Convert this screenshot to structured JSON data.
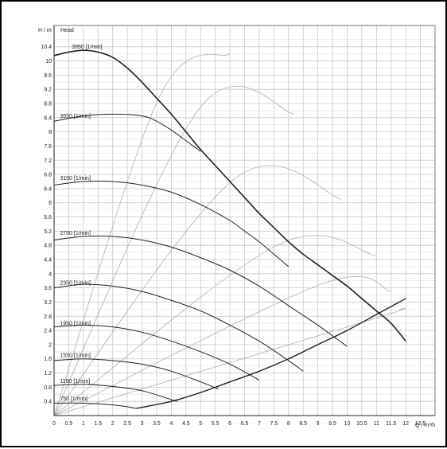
{
  "chart_data": {
    "type": "line",
    "y_axis_label": "H / m",
    "title": "Head",
    "x_axis_label": "Q / m³/h",
    "xlim": [
      0,
      13
    ],
    "ylim": [
      0,
      11
    ],
    "x_ticks": [
      "0",
      "0.5",
      "1",
      "1.5",
      "2",
      "2.5",
      "3",
      "3.5",
      "4",
      "4.5",
      "5",
      "5.5",
      "6",
      "6.5",
      "7",
      "7.5",
      "8",
      "8.5",
      "9",
      "9.5",
      "10",
      "10.5",
      "11",
      "11.5",
      "12",
      "12.5"
    ],
    "y_ticks": [
      "0.4",
      "0.8",
      "1.2",
      "1.6",
      "2",
      "2.4",
      "2.8",
      "3.2",
      "3.6",
      "4",
      "4.4",
      "4.8",
      "5.2",
      "5.6",
      "6",
      "6.4",
      "6.8",
      "7.2",
      "7.6",
      "8",
      "8.4",
      "8.8",
      "9.2",
      "9.6",
      "10",
      "10.4"
    ],
    "grid": true,
    "series": [
      {
        "name": "3950 [1/min]",
        "label_at": [
          0.6,
          10.3
        ],
        "x": [
          0,
          0.5,
          1,
          1.5,
          2,
          2.5,
          3,
          3.5,
          4,
          4.5,
          5,
          5.5,
          6,
          6.5,
          7,
          7.5,
          8,
          8.5,
          9,
          9.5,
          10,
          10.5,
          11,
          11.5,
          12
        ],
        "y": [
          10.15,
          10.25,
          10.3,
          10.25,
          10.1,
          9.8,
          9.4,
          8.95,
          8.5,
          8.0,
          7.5,
          7.05,
          6.6,
          6.15,
          5.7,
          5.3,
          4.9,
          4.55,
          4.25,
          3.95,
          3.65,
          3.3,
          2.95,
          2.6,
          2.1
        ]
      },
      {
        "name": "3550 [1/min]",
        "label_at": [
          0.2,
          8.35
        ],
        "x": [
          0,
          1,
          2,
          3,
          3.5,
          4,
          4.5,
          5
        ],
        "y": [
          8.3,
          8.45,
          8.5,
          8.45,
          8.3,
          8.05,
          7.75,
          7.45
        ]
      },
      {
        "name": "3150 [1/min]",
        "label_at": [
          0.2,
          6.6
        ],
        "x": [
          0,
          1,
          2,
          3,
          4,
          5,
          6,
          6.5,
          7,
          7.5,
          8
        ],
        "y": [
          6.5,
          6.6,
          6.6,
          6.5,
          6.3,
          5.95,
          5.5,
          5.2,
          4.9,
          4.55,
          4.2
        ]
      },
      {
        "name": "2750 [1/min]",
        "label_at": [
          0.2,
          5.05
        ],
        "x": [
          0,
          1,
          2,
          3,
          4,
          5,
          6,
          7,
          8,
          9,
          9.5,
          10
        ],
        "y": [
          4.95,
          5.05,
          5.05,
          4.95,
          4.75,
          4.45,
          4.1,
          3.65,
          3.1,
          2.55,
          2.25,
          1.95
        ]
      },
      {
        "name": "2350 [1/min]",
        "label_at": [
          0.2,
          3.65
        ],
        "x": [
          0,
          1,
          2,
          3,
          4,
          5,
          6,
          7,
          8,
          8.5
        ],
        "y": [
          3.6,
          3.7,
          3.65,
          3.5,
          3.25,
          2.95,
          2.55,
          2.1,
          1.55,
          1.25
        ]
      },
      {
        "name": "1950 [1/min]",
        "label_at": [
          0.2,
          2.5
        ],
        "x": [
          0,
          1,
          2,
          3,
          4,
          5,
          6,
          7
        ],
        "y": [
          2.5,
          2.55,
          2.5,
          2.35,
          2.1,
          1.8,
          1.45,
          1.0
        ]
      },
      {
        "name": "1550 [1/min]",
        "label_at": [
          0.2,
          1.6
        ],
        "x": [
          0,
          1,
          2,
          3,
          4,
          5,
          5.6
        ],
        "y": [
          1.55,
          1.6,
          1.55,
          1.45,
          1.25,
          0.95,
          0.75
        ]
      },
      {
        "name": "1150 [1/min]",
        "label_at": [
          0.2,
          0.88
        ],
        "x": [
          0,
          1,
          2,
          3,
          4,
          4.2
        ],
        "y": [
          0.85,
          0.88,
          0.82,
          0.7,
          0.45,
          0.4
        ]
      },
      {
        "name": "750 [1/min]",
        "label_at": [
          0.2,
          0.38
        ],
        "x": [
          0,
          1,
          2,
          2.5,
          2.8
        ],
        "y": [
          0.35,
          0.35,
          0.3,
          0.25,
          0.2
        ]
      }
    ],
    "envelope": {
      "x": [
        2.8,
        4,
        5,
        6,
        7,
        8,
        9,
        10,
        11,
        12
      ],
      "y": [
        0.2,
        0.4,
        0.65,
        0.95,
        1.25,
        1.6,
        2.0,
        2.4,
        2.85,
        3.3
      ]
    },
    "system_curves": [
      {
        "x": [
          0,
          3.6,
          6
        ],
        "y": [
          0,
          9.0,
          10.2
        ]
      },
      {
        "x": [
          0,
          5.0,
          8.2
        ],
        "y": [
          0,
          8.7,
          8.5
        ]
      },
      {
        "x": [
          0,
          6.2,
          9.8
        ],
        "y": [
          0,
          6.7,
          6.1
        ]
      },
      {
        "x": [
          0,
          7.6,
          11.0
        ],
        "y": [
          0,
          4.8,
          4.5
        ]
      },
      {
        "x": [
          0,
          9.1,
          11.5
        ],
        "y": [
          0,
          3.7,
          3.5
        ]
      },
      {
        "x": [
          0,
          10.8,
          11.8
        ],
        "y": [
          0,
          2.7,
          3.0
        ]
      }
    ]
  }
}
